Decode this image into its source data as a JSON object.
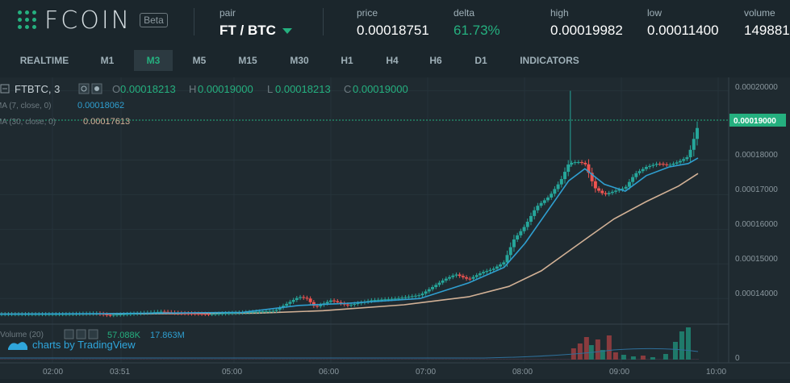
{
  "header": {
    "logo_text": "FCOIN",
    "beta_label": "Beta",
    "pair_label": "pair",
    "pair_value": "FT / BTC",
    "price_label": "price",
    "price_value": "0.00018751",
    "delta_label": "delta",
    "delta_value": "61.73%",
    "high_label": "high",
    "high_value": "0.00019982",
    "low_label": "low",
    "low_value": "0.00011400",
    "volume_label": "volume",
    "volume_value": "149881"
  },
  "toolbar": {
    "items": [
      "REALTIME",
      "M1",
      "M3",
      "M5",
      "M15",
      "M30",
      "H1",
      "H4",
      "H6",
      "D1",
      "INDICATORS"
    ],
    "active_index": 2
  },
  "chart_info": {
    "symbol_label": "FTBTC, 3",
    "o_label": "O",
    "o_value": "0.00018213",
    "h_label": "H",
    "h_value": "0.00019000",
    "l_label": "L",
    "l_value": "0.00018213",
    "c_label": "C",
    "c_value": "0.00019000",
    "ma7_label": "MA (7, close, 0)",
    "ma7_value": "0.00018062",
    "ma30_label": "MA (30, close, 0)",
    "ma30_value": "0.00017613",
    "volume_legend": "Volume (20)",
    "volume_v1": "57.088K",
    "volume_v2": "17.863M",
    "tradingview_label": "charts by TradingView",
    "last_price_label": "0.00019000"
  },
  "colors": {
    "up": "#26a69a",
    "down": "#ef5350",
    "ma7": "#2f9fd0",
    "ma30": "#d2b196",
    "accent": "#25b07f",
    "background": "#1f2a30"
  },
  "chart_data": {
    "type": "candlestick",
    "y_ticks": [
      "0.00020000",
      "0.00019000",
      "0.00018000",
      "0.00017000",
      "0.00016000",
      "0.00015000",
      "0.00014000"
    ],
    "x_ticks": [
      "02:00",
      "03:51",
      "05:00",
      "06:00",
      "07:00",
      "08:00",
      "09:00",
      "10:00"
    ],
    "volume_y_tick": "0",
    "ylim": [
      0.000134,
      0.000202
    ],
    "price_points": [
      [
        0,
        0.0001355
      ],
      [
        40,
        0.0001355
      ],
      [
        60,
        0.0001357
      ],
      [
        67,
        0.0001352
      ],
      [
        85,
        0.0001357
      ],
      [
        100,
        0.0001362
      ],
      [
        110,
        0.0001358
      ],
      [
        130,
        0.0001355
      ],
      [
        150,
        0.000136
      ],
      [
        170,
        0.0001365
      ],
      [
        185,
        0.0001405
      ],
      [
        190,
        0.00014
      ],
      [
        195,
        0.0001375
      ],
      [
        205,
        0.0001395
      ],
      [
        215,
        0.000138
      ],
      [
        230,
        0.0001395
      ],
      [
        245,
        0.00014
      ],
      [
        260,
        0.000141
      ],
      [
        275,
        0.0001455
      ],
      [
        282,
        0.000147
      ],
      [
        290,
        0.0001455
      ],
      [
        298,
        0.0001475
      ],
      [
        305,
        0.0001485
      ],
      [
        312,
        0.0001505
      ],
      [
        318,
        0.000157
      ],
      [
        325,
        0.000161
      ],
      [
        332,
        0.0001665
      ],
      [
        340,
        0.0001695
      ],
      [
        347,
        0.000174
      ],
      [
        352,
        0.000179
      ],
      [
        357,
        0.0001795
      ],
      [
        362,
        0.000179
      ],
      [
        368,
        0.000172
      ],
      [
        374,
        0.00017
      ],
      [
        380,
        0.000171
      ],
      [
        387,
        0.000172
      ],
      [
        393,
        0.000176
      ],
      [
        400,
        0.000178
      ],
      [
        407,
        0.000179
      ],
      [
        414,
        0.0001785
      ],
      [
        420,
        0.0001795
      ],
      [
        426,
        0.000181
      ],
      [
        432,
        0.00019
      ]
    ],
    "ma7_points": [
      [
        0,
        0.0001355
      ],
      [
        60,
        0.0001356
      ],
      [
        100,
        0.0001358
      ],
      [
        150,
        0.000136
      ],
      [
        185,
        0.000138
      ],
      [
        215,
        0.0001386
      ],
      [
        260,
        0.00014
      ],
      [
        290,
        0.0001445
      ],
      [
        312,
        0.000149
      ],
      [
        325,
        0.000156
      ],
      [
        340,
        0.000166
      ],
      [
        352,
        0.000174
      ],
      [
        362,
        0.0001775
      ],
      [
        374,
        0.000173
      ],
      [
        387,
        0.000171
      ],
      [
        400,
        0.0001755
      ],
      [
        414,
        0.000178
      ],
      [
        426,
        0.000179
      ],
      [
        432,
        0.0001806
      ]
    ],
    "ma30_points": [
      [
        0,
        0.0001355
      ],
      [
        100,
        0.0001356
      ],
      [
        160,
        0.0001358
      ],
      [
        200,
        0.0001365
      ],
      [
        250,
        0.0001382
      ],
      [
        290,
        0.0001405
      ],
      [
        315,
        0.0001435
      ],
      [
        335,
        0.000148
      ],
      [
        350,
        0.000153
      ],
      [
        365,
        0.000158
      ],
      [
        380,
        0.000163
      ],
      [
        400,
        0.000168
      ],
      [
        420,
        0.0001725
      ],
      [
        432,
        0.0001761
      ]
    ],
    "spike": {
      "x": 353,
      "high": 0.0002,
      "low": 0.000178
    },
    "volume_bars": [
      [
        355,
        14,
        "down"
      ],
      [
        359,
        20,
        "down"
      ],
      [
        363,
        28,
        "down"
      ],
      [
        366,
        18,
        "up"
      ],
      [
        370,
        25,
        "down"
      ],
      [
        373,
        12,
        "up"
      ],
      [
        377,
        30,
        "down"
      ],
      [
        381,
        9,
        "down"
      ],
      [
        386,
        6,
        "up"
      ],
      [
        392,
        4,
        "up"
      ],
      [
        398,
        5,
        "down"
      ],
      [
        404,
        3,
        "up"
      ],
      [
        412,
        7,
        "up"
      ],
      [
        418,
        22,
        "up"
      ],
      [
        422,
        35,
        "up"
      ],
      [
        426,
        40,
        "up"
      ]
    ]
  }
}
